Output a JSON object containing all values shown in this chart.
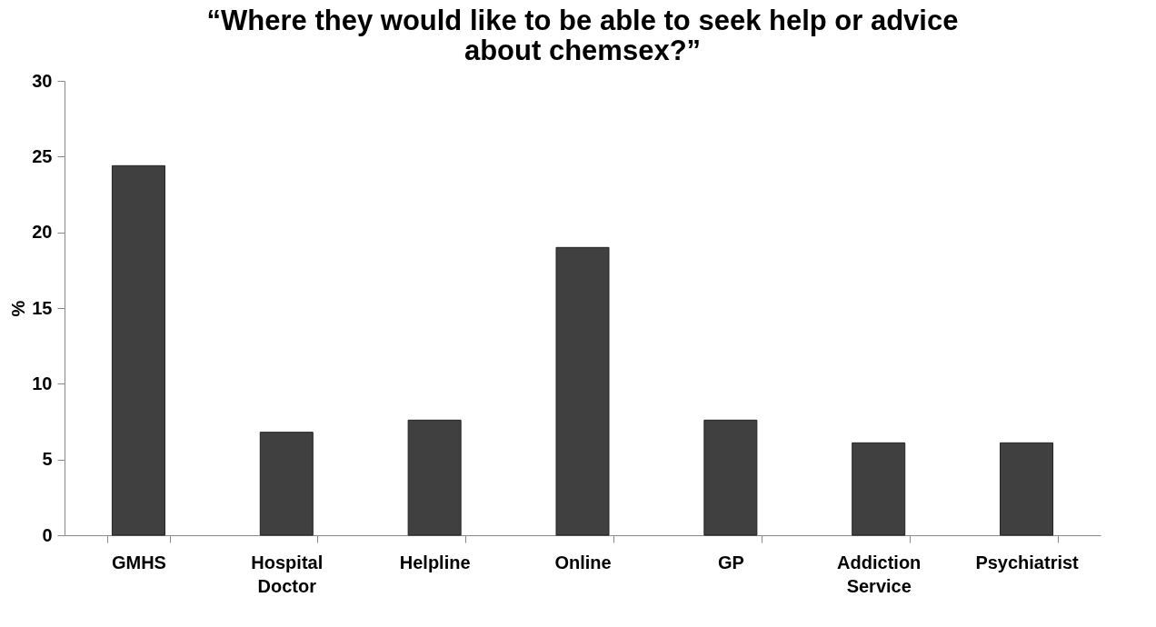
{
  "chart_data": {
    "type": "bar",
    "title": "“Where they would like to be able to seek help or advice about chemsex?”",
    "ylabel": "%",
    "categories": [
      "GMHS",
      "Hospital Doctor",
      "Helpline",
      "Online",
      "GP",
      "Addiction Service",
      "Psychiatrist"
    ],
    "values": [
      24.4,
      6.8,
      7.6,
      19.0,
      7.6,
      6.1,
      6.1
    ],
    "color": "#404040",
    "ylim": [
      0,
      30
    ],
    "yticks": [
      0,
      5,
      10,
      15,
      20,
      25,
      30
    ],
    "grid": false
  }
}
